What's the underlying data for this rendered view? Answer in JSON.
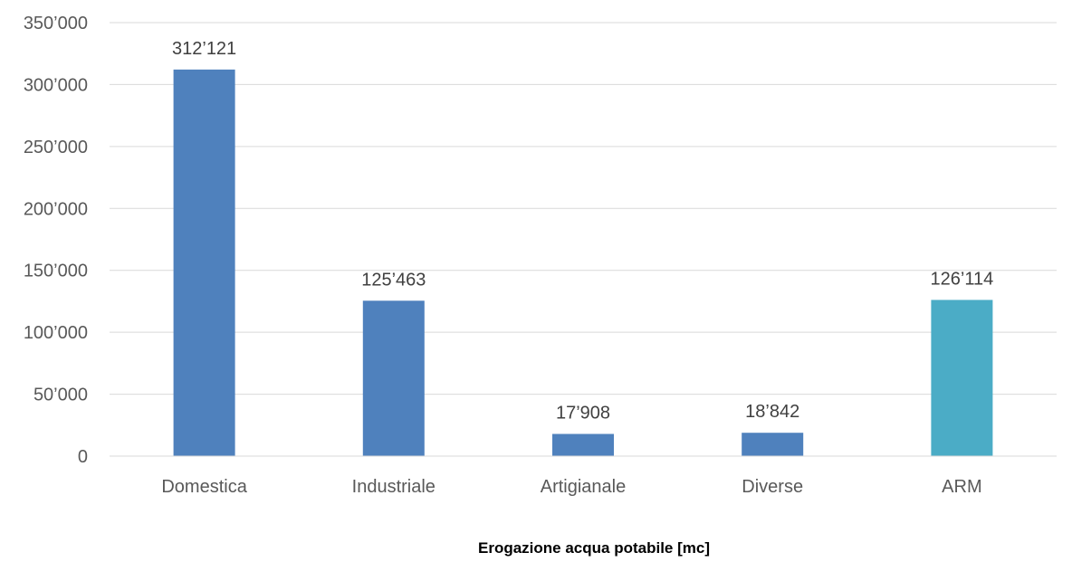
{
  "chart_data": {
    "type": "bar",
    "title": "Erogazione acqua potabile [mc]",
    "xlabel": "",
    "ylabel": "",
    "categories": [
      "Domestica",
      "Industriale",
      "Artigianale",
      "Diverse",
      "ARM"
    ],
    "values": [
      312121,
      125463,
      17908,
      18842,
      126114
    ],
    "value_labels": [
      "312’121",
      "125’463",
      "17’908",
      "18’842",
      "126’114"
    ],
    "bar_colors": [
      "#4f81bd",
      "#4f81bd",
      "#4f81bd",
      "#4f81bd",
      "#4bacc6"
    ],
    "ylim": [
      0,
      350000
    ],
    "yticks": [
      0,
      50000,
      100000,
      150000,
      200000,
      250000,
      300000,
      350000
    ],
    "ytick_labels": [
      "0",
      "50’000",
      "100’000",
      "150’000",
      "200’000",
      "250’000",
      "300’000",
      "350’000"
    ],
    "grid": true,
    "legend": "none"
  }
}
